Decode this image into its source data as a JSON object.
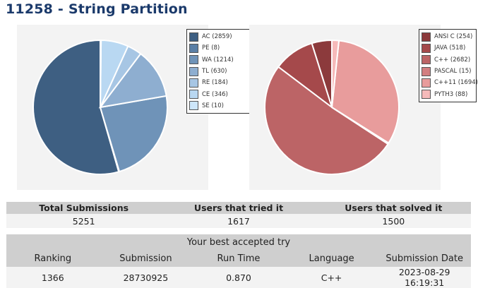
{
  "page_title": "11258 - String Partition",
  "verdict_chart": {
    "legend": [
      {
        "label": "AC (2859)",
        "color": "#3e5f82"
      },
      {
        "label": "PE (8)",
        "color": "#5a7fa6"
      },
      {
        "label": "WA (1214)",
        "color": "#6f93b8"
      },
      {
        "label": "TL (630)",
        "color": "#8eaed0"
      },
      {
        "label": "RE (184)",
        "color": "#a7c6e4"
      },
      {
        "label": "CE (346)",
        "color": "#b9d8f2"
      },
      {
        "label": "SE (10)",
        "color": "#cde6fa"
      }
    ]
  },
  "language_chart": {
    "legend": [
      {
        "label": "ANSI C (254)",
        "color": "#8c3a3c"
      },
      {
        "label": "JAVA (518)",
        "color": "#a5494b"
      },
      {
        "label": "C++ (2682)",
        "color": "#bc6466"
      },
      {
        "label": "PASCAL (15)",
        "color": "#d27e80"
      },
      {
        "label": "C++11 (1694)",
        "color": "#e89c9c"
      },
      {
        "label": "PYTH3 (88)",
        "color": "#f6baba"
      }
    ]
  },
  "chart_data": [
    {
      "type": "pie",
      "categories": [
        "AC",
        "PE",
        "WA",
        "TL",
        "RE",
        "CE",
        "SE"
      ],
      "values": [
        2859,
        8,
        1214,
        630,
        184,
        346,
        10
      ],
      "legend_position": "right"
    },
    {
      "type": "pie",
      "categories": [
        "ANSI C",
        "JAVA",
        "C++",
        "PASCAL",
        "C++11",
        "PYTH3"
      ],
      "values": [
        254,
        518,
        2682,
        15,
        1694,
        88
      ],
      "legend_position": "right"
    }
  ],
  "stats": {
    "headers": [
      "Total Submissions",
      "Users that tried it",
      "Users that solved it"
    ],
    "values": [
      "5251",
      "1617",
      "1500"
    ]
  },
  "best_try": {
    "caption": "Your best accepted try",
    "headers": [
      "Ranking",
      "Submission",
      "Run Time",
      "Language",
      "Submission Date"
    ],
    "values": [
      "1366",
      "28730925",
      "0.870",
      "C++",
      "2023-08-29 16:19:31"
    ]
  }
}
